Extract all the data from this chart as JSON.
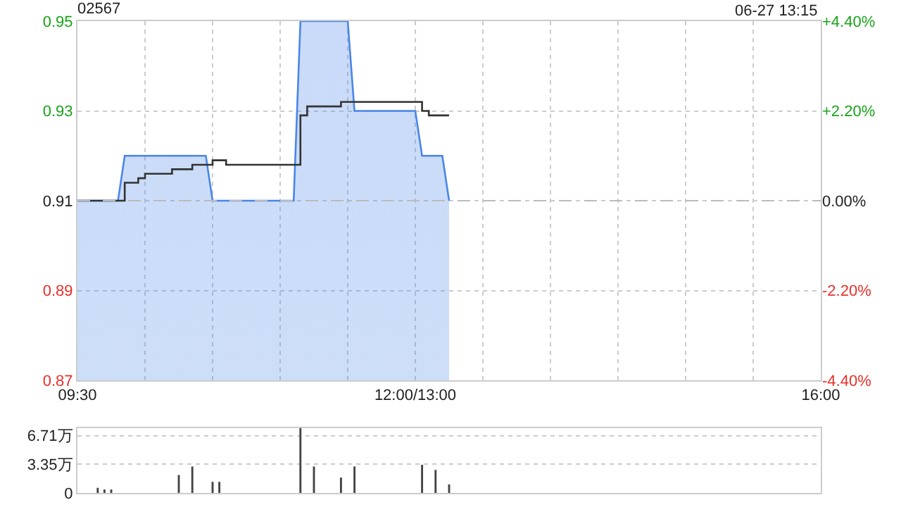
{
  "chart_data": [
    {
      "type": "step",
      "title": "02567",
      "annotations": [
        "06-27 13:15"
      ],
      "categories": [
        "09:30",
        null,
        null,
        null,
        null,
        null,
        null,
        null,
        null,
        null,
        null,
        null,
        null,
        null,
        null,
        null,
        null,
        null,
        null,
        null,
        null,
        null,
        null,
        null,
        null,
        null,
        null,
        null,
        null,
        null,
        null,
        null,
        null,
        null,
        null,
        null,
        null,
        null,
        null,
        null,
        null,
        null,
        null,
        null,
        null,
        null,
        null,
        null,
        null,
        null,
        "12:00/13:00",
        null,
        null,
        null,
        null,
        null,
        null,
        null,
        null,
        null,
        null,
        null,
        null,
        null,
        null,
        null,
        null,
        null,
        null,
        null,
        null,
        null,
        null,
        null,
        null,
        null,
        null,
        null,
        null,
        null,
        null,
        null,
        null,
        null,
        null,
        null,
        null,
        null,
        null,
        null,
        null,
        null,
        null,
        null,
        null,
        null,
        null,
        null,
        null,
        null,
        null,
        null,
        null,
        null,
        null,
        null,
        null,
        null,
        null,
        null,
        "16:00"
      ],
      "series": [
        {
          "type": "area",
          "color": "#4a86e8",
          "values": [
            0.91,
            0.91,
            0.91,
            0.91,
            0.91,
            0.91,
            0.91,
            0.92,
            0.92,
            0.92,
            0.92,
            0.92,
            0.92,
            0.92,
            0.92,
            0.92,
            0.92,
            0.92,
            0.92,
            0.92,
            0.91,
            0.91,
            0.91,
            0.91,
            0.91,
            0.91,
            0.91,
            0.91,
            0.91,
            0.91,
            0.91,
            0.91,
            0.91,
            0.95,
            0.95,
            0.95,
            0.95,
            0.95,
            0.95,
            0.95,
            0.95,
            0.93,
            0.93,
            0.93,
            0.93,
            0.93,
            0.93,
            0.93,
            0.93,
            0.93,
            0.93,
            0.92,
            0.92,
            0.92,
            0.92,
            0.91,
            null,
            null,
            null,
            null,
            null,
            null,
            null,
            null,
            null,
            null,
            null,
            null,
            null,
            null,
            null,
            null,
            null,
            null,
            null,
            null,
            null,
            null,
            null,
            null,
            null,
            null,
            null,
            null,
            null,
            null,
            null,
            null,
            null,
            null,
            null,
            null,
            null,
            null,
            null,
            null,
            null,
            null,
            null,
            null,
            null,
            null,
            null,
            null,
            null,
            null,
            null,
            null,
            null,
            null,
            null
          ]
        },
        {
          "color": "#333333",
          "values": [
            0.91,
            0.91,
            0.91,
            0.91,
            0.91,
            0.91,
            0.91,
            0.914,
            0.914,
            0.915,
            0.916,
            0.916,
            0.916,
            0.916,
            0.917,
            0.917,
            0.917,
            0.918,
            0.918,
            0.918,
            0.919,
            0.919,
            0.918,
            0.918,
            0.918,
            0.918,
            0.918,
            0.918,
            0.918,
            0.918,
            0.918,
            0.918,
            0.918,
            0.929,
            0.931,
            0.931,
            0.931,
            0.931,
            0.931,
            0.932,
            0.932,
            0.932,
            0.932,
            0.932,
            0.932,
            0.932,
            0.932,
            0.932,
            0.932,
            0.932,
            0.932,
            0.93,
            0.929,
            0.929,
            0.929,
            0.929,
            null,
            null,
            null,
            null,
            null,
            null,
            null,
            null,
            null,
            null,
            null,
            null,
            null,
            null,
            null,
            null,
            null,
            null,
            null,
            null,
            null,
            null,
            null,
            null,
            null,
            null,
            null,
            null,
            null,
            null,
            null,
            null,
            null,
            null,
            null,
            null,
            null,
            null,
            null,
            null,
            null,
            null,
            null,
            null,
            null,
            null,
            null,
            null,
            null,
            null,
            null,
            null,
            null,
            null,
            null
          ]
        }
      ],
      "ylim": [
        0.87,
        0.95
      ],
      "yticks": [
        0.87,
        0.89,
        0.91,
        0.93,
        0.95
      ],
      "y2lim": [
        -4.4,
        4.4
      ],
      "y2ticks": [
        {
          "value": -4.4,
          "label": "-4.40%"
        },
        {
          "value": -2.2,
          "label": "-2.20%"
        },
        {
          "value": 0,
          "label": "0.00%"
        },
        {
          "value": 2.2,
          "label": "+2.20%"
        },
        {
          "value": 4.4,
          "label": "+4.40%"
        }
      ],
      "ref_lines": [
        {
          "axis": "y",
          "value": 0.91,
          "line_style": "dashed",
          "color": "#bbbbbb"
        }
      ],
      "grid": true
    },
    {
      "type": "bar",
      "color": "#444444",
      "categories": [
        null,
        null,
        null,
        null,
        null,
        null,
        null,
        null,
        null,
        null,
        null,
        null,
        null,
        null,
        null,
        null,
        null,
        null,
        null,
        null,
        null,
        null,
        null,
        null,
        null,
        null,
        null,
        null,
        null,
        null,
        null,
        null,
        null,
        null,
        null,
        null,
        null,
        null,
        null,
        null,
        null,
        null,
        null,
        null,
        null,
        null,
        null,
        null,
        null,
        null,
        null,
        null,
        null,
        null,
        null,
        null,
        null,
        null,
        null,
        null,
        null,
        null,
        null,
        null,
        null,
        null,
        null,
        null,
        null,
        null,
        null,
        null,
        null,
        null,
        null,
        null,
        null,
        null,
        null,
        null,
        null,
        null,
        null,
        null,
        null,
        null,
        null,
        null,
        null,
        null,
        null,
        null,
        null,
        null,
        null,
        null,
        null,
        null,
        null,
        null,
        null,
        null,
        null,
        null,
        null,
        null,
        null,
        null,
        null,
        null,
        null
      ],
      "values": [
        null,
        null,
        null,
        0.6,
        0.4,
        0.4,
        null,
        null,
        null,
        null,
        null,
        null,
        null,
        null,
        null,
        2.1,
        null,
        3.1,
        null,
        null,
        1.3,
        1.3,
        null,
        null,
        null,
        null,
        null,
        null,
        null,
        null,
        null,
        null,
        null,
        7.6,
        null,
        3.1,
        null,
        null,
        null,
        1.8,
        null,
        3.1,
        null,
        null,
        null,
        null,
        null,
        null,
        null,
        null,
        null,
        3.3,
        null,
        2.7,
        null,
        1.0,
        null,
        null,
        null,
        null,
        null,
        null,
        null,
        null,
        null,
        null,
        null,
        null,
        null,
        null,
        null,
        null,
        null,
        null,
        null,
        null,
        null,
        null,
        null,
        null,
        null,
        null,
        null,
        null,
        null,
        null,
        null,
        null,
        null,
        null,
        null,
        null,
        null,
        null,
        null,
        null,
        null,
        null,
        null,
        null,
        null,
        null,
        null,
        null,
        null,
        null,
        null,
        null,
        null,
        null,
        null
      ],
      "ylim": [
        0,
        7.6
      ],
      "yticks": [
        0,
        {
          "value": 3.35,
          "label": "3.35万"
        },
        {
          "value": 6.71,
          "label": "6.71万"
        }
      ],
      "tick_labels": "y",
      "grid": "y"
    }
  ]
}
